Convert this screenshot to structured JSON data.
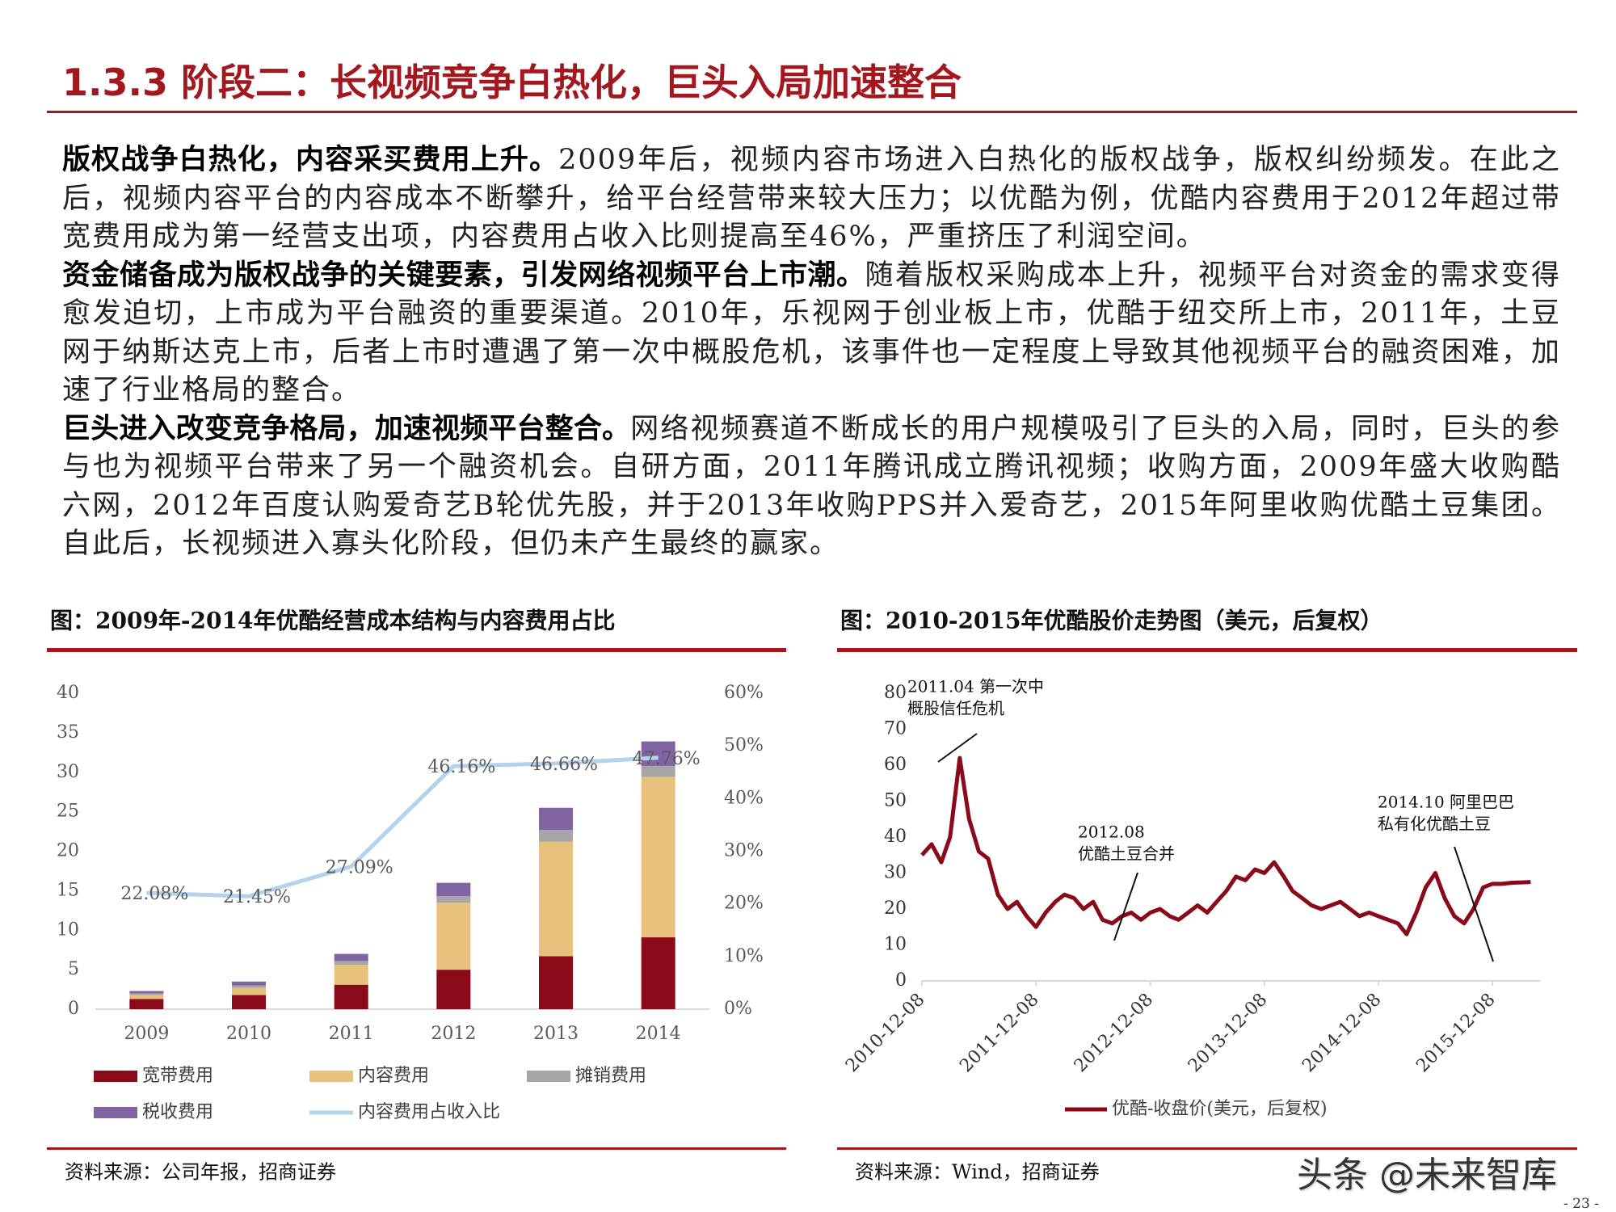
{
  "header": {
    "title": "1.3.3 阶段二：长视频竞争白热化，巨头入局加速整合"
  },
  "paragraphs": [
    {
      "lead": "版权战争白热化，内容采买费用上升。",
      "text": "2009年后，视频内容市场进入白热化的版权战争，版权纠纷频发。在此之后，视频内容平台的内容成本不断攀升，给平台经营带来较大压力；以优酷为例，优酷内容费用于2012年超过带宽费用成为第一经营支出项，内容费用占收入比则提高至46%，严重挤压了利润空间。"
    },
    {
      "lead": "资金储备成为版权战争的关键要素，引发网络视频平台上市潮。",
      "text": "随着版权采购成本上升，视频平台对资金的需求变得愈发迫切，上市成为平台融资的重要渠道。2010年，乐视网于创业板上市，优酷于纽交所上市，2011年，土豆网于纳斯达克上市，后者上市时遭遇了第一次中概股危机，该事件也一定程度上导致其他视频平台的融资困难，加速了行业格局的整合。"
    },
    {
      "lead": "巨头进入改变竞争格局，加速视频平台整合。",
      "text": "网络视频赛道不断成长的用户规模吸引了巨头的入局，同时，巨头的参与也为视频平台带来了另一个融资机会。自研方面，2011年腾讯成立腾讯视频；收购方面，2009年盛大收购酷六网，2012年百度认购爱奇艺B轮优先股，并于2013年收购PPS并入爱奇艺，2015年阿里收购优酷土豆集团。自此后，长视频进入寡头化阶段，但仍未产生最终的赢家。"
    }
  ],
  "chart_data": [
    {
      "type": "bar",
      "stacked": true,
      "title": "图：2009年-2014年优酷经营成本结构与内容费用占比",
      "categories": [
        "2009",
        "2010",
        "2011",
        "2012",
        "2013",
        "2014"
      ],
      "series": [
        {
          "name": "宽带费用",
          "color": "#8b0a1a",
          "values": [
            1.3,
            1.8,
            3.1,
            5.0,
            6.7,
            9.1
          ]
        },
        {
          "name": "内容费用",
          "color": "#e8c27d",
          "values": [
            0.5,
            0.9,
            2.5,
            8.5,
            14.5,
            20.3
          ]
        },
        {
          "name": "摊销费用",
          "color": "#a6a6a6",
          "values": [
            0.2,
            0.3,
            0.5,
            0.8,
            1.5,
            1.4
          ]
        },
        {
          "name": "税收费用",
          "color": "#8064a2",
          "values": [
            0.3,
            0.5,
            0.9,
            1.7,
            2.8,
            3.1
          ]
        },
        {
          "name": "内容费用占收入比",
          "color": "#b4d2ea",
          "type": "line",
          "axis": "y2",
          "values": [
            22.08,
            21.45,
            27.09,
            46.16,
            46.66,
            47.76
          ],
          "value_labels": [
            "22.08%",
            "21.45%",
            "27.09%",
            "46.16%",
            "46.66%",
            "47.76%"
          ]
        }
      ],
      "ylim": [
        0,
        40
      ],
      "yticks": [
        0,
        5,
        10,
        15,
        20,
        25,
        30,
        35,
        40
      ],
      "y2lim": [
        0,
        60
      ],
      "y2ticks": [
        {
          "value": 0,
          "label": "0%"
        },
        {
          "value": 10,
          "label": "10%"
        },
        {
          "value": 20,
          "label": "20%"
        },
        {
          "value": 30,
          "label": "30%"
        },
        {
          "value": 40,
          "label": "40%"
        },
        {
          "value": 50,
          "label": "50%"
        },
        {
          "value": 60,
          "label": "60%"
        }
      ],
      "grid": false,
      "source": "资料来源：公司年报，招商证券"
    },
    {
      "type": "line",
      "title": "图：2010-2015年优酷股价走势图（美元，后复权）",
      "x": [
        "2010-12-08",
        "2011-01-08",
        "2011-02-08",
        "2011-03-08",
        "2011-04-08",
        "2011-05-08",
        "2011-06-08",
        "2011-07-08",
        "2011-08-08",
        "2011-09-08",
        "2011-10-08",
        "2011-11-08",
        "2011-12-08",
        "2012-01-08",
        "2012-02-08",
        "2012-03-08",
        "2012-04-08",
        "2012-05-08",
        "2012-06-08",
        "2012-07-08",
        "2012-08-08",
        "2012-09-08",
        "2012-10-08",
        "2012-11-08",
        "2012-12-08",
        "2013-01-08",
        "2013-02-08",
        "2013-03-08",
        "2013-04-08",
        "2013-05-08",
        "2013-06-08",
        "2013-07-08",
        "2013-08-08",
        "2013-09-08",
        "2013-10-08",
        "2013-11-08",
        "2013-12-08",
        "2014-01-08",
        "2014-02-08",
        "2014-03-08",
        "2014-04-08",
        "2014-05-08",
        "2014-06-08",
        "2014-07-08",
        "2014-08-08",
        "2014-09-08",
        "2014-10-08",
        "2014-11-08",
        "2014-12-08",
        "2015-01-08",
        "2015-02-08",
        "2015-03-08",
        "2015-04-08",
        "2015-05-08",
        "2015-06-08",
        "2015-07-08",
        "2015-08-08",
        "2015-09-08",
        "2015-10-08",
        "2015-11-08",
        "2015-12-08",
        "2016-01-08",
        "2016-02-08",
        "2016-03-08",
        "2016-04-08"
      ],
      "series": [
        {
          "name": "优酷-收盘价(美元，后复权)",
          "color": "#8b0a1a",
          "values": [
            35,
            38,
            33,
            40,
            62,
            45,
            36,
            34,
            24,
            20,
            22,
            18,
            15,
            19,
            22,
            24,
            23,
            20,
            22,
            17,
            16,
            18,
            19,
            17,
            19,
            20,
            18,
            17,
            19,
            21,
            19,
            22,
            25,
            29,
            28,
            31,
            30,
            33,
            29,
            25,
            23,
            21,
            20,
            21,
            22,
            20,
            18,
            19,
            18,
            17,
            16,
            13,
            19,
            26,
            30,
            23,
            18,
            16,
            20,
            26,
            27,
            27,
            27.3,
            27.4,
            27.5
          ]
        }
      ],
      "xlim": [
        "2010-12-08",
        "2016-05-08"
      ],
      "xticks": [
        "2010-12-08",
        "2011-12-08",
        "2012-12-08",
        "2013-12-08",
        "2014-12-08",
        "2015-12-08"
      ],
      "ylim": [
        0,
        80
      ],
      "yticks": [
        0,
        10,
        20,
        30,
        40,
        50,
        60,
        70,
        80
      ],
      "grid": false,
      "annotations": [
        {
          "lines": [
            "2011.04 第一次中",
            "概股信任危机"
          ]
        },
        {
          "lines": [
            "2012.08",
            "优酷土豆合并"
          ]
        },
        {
          "lines": [
            "2014.10 阿里巴巴",
            "私有化优酷土豆"
          ]
        }
      ],
      "source": "资料来源：Wind，招商证券"
    }
  ],
  "watermark": "头条 @未来智库",
  "page_number": "- 23 -"
}
